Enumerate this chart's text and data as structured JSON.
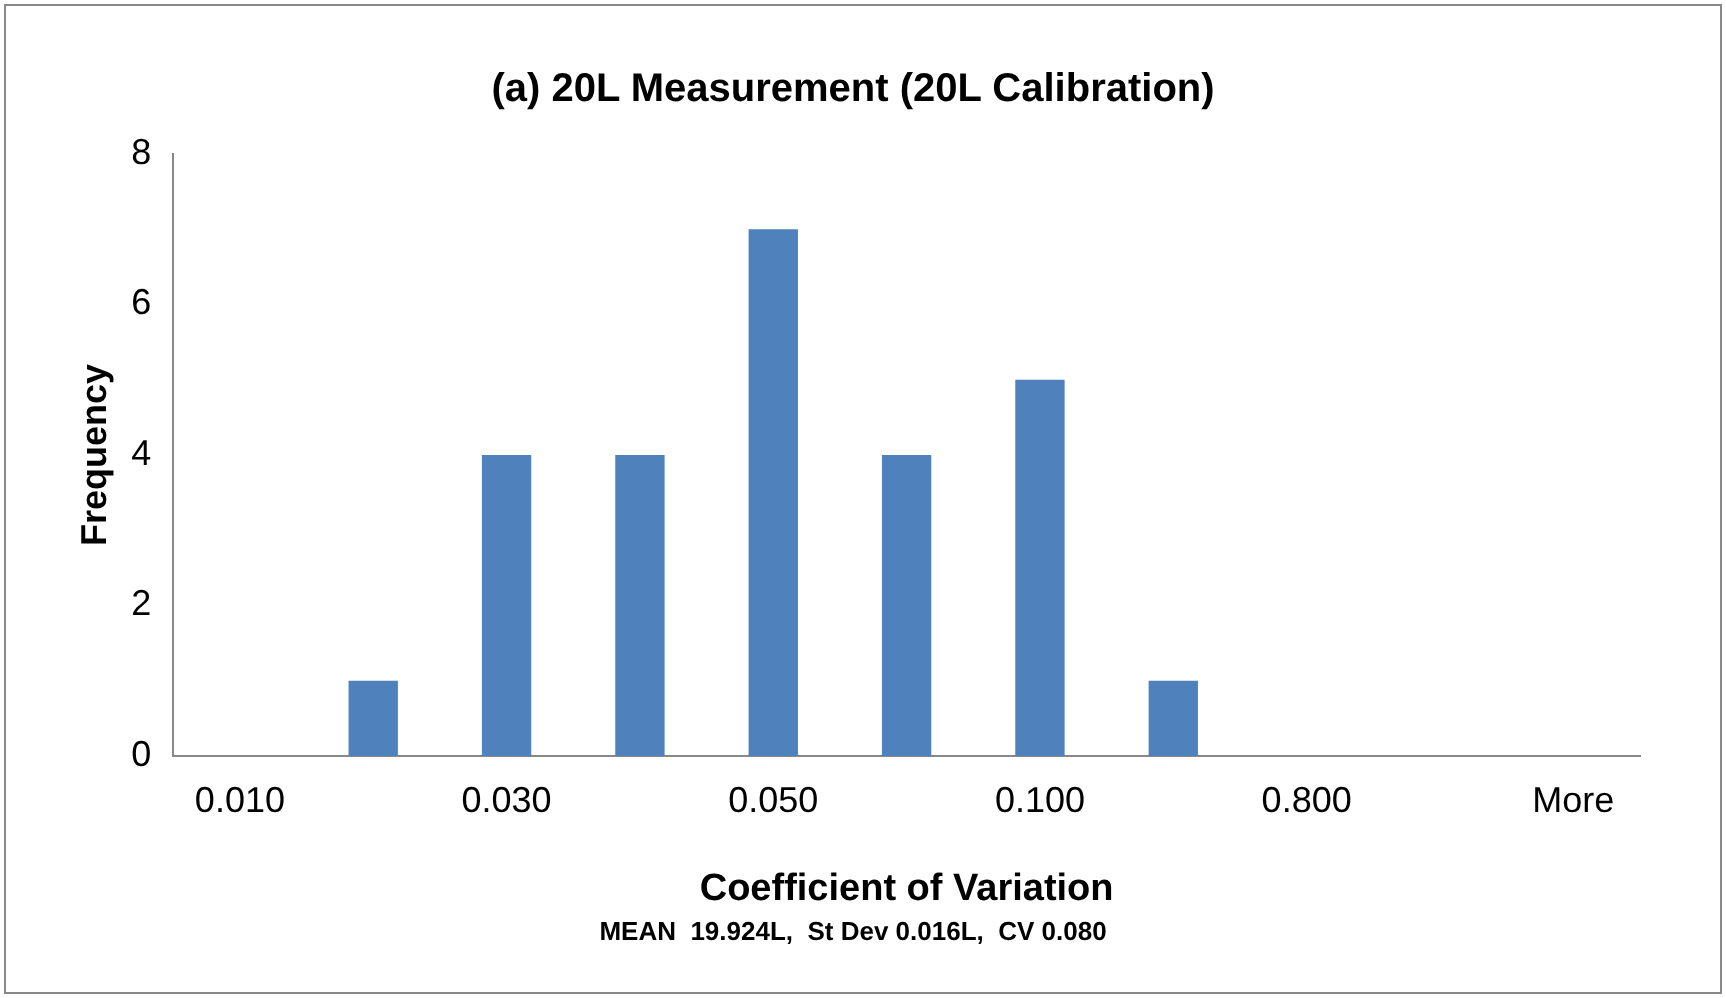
{
  "chart_data": {
    "type": "bar",
    "title": "(a) 20L Measurement (20L Calibration)",
    "xlabel": "Coefficient of Variation",
    "ylabel": "Frequency",
    "categories": [
      "0.010",
      null,
      "0.030",
      null,
      "0.050",
      null,
      "0.100",
      null,
      "0.800",
      null,
      "More"
    ],
    "values": [
      0,
      1,
      4,
      4,
      7,
      4,
      5,
      1,
      0,
      0,
      0
    ],
    "color": "#4f81bd",
    "ylim": [
      0,
      8
    ],
    "yticks": [
      0,
      2,
      4,
      6,
      8
    ],
    "grid": false,
    "legend": false,
    "annotations": [
      "MEAN  19.924L,  St Dev 0.016L,  CV 0.080"
    ]
  }
}
